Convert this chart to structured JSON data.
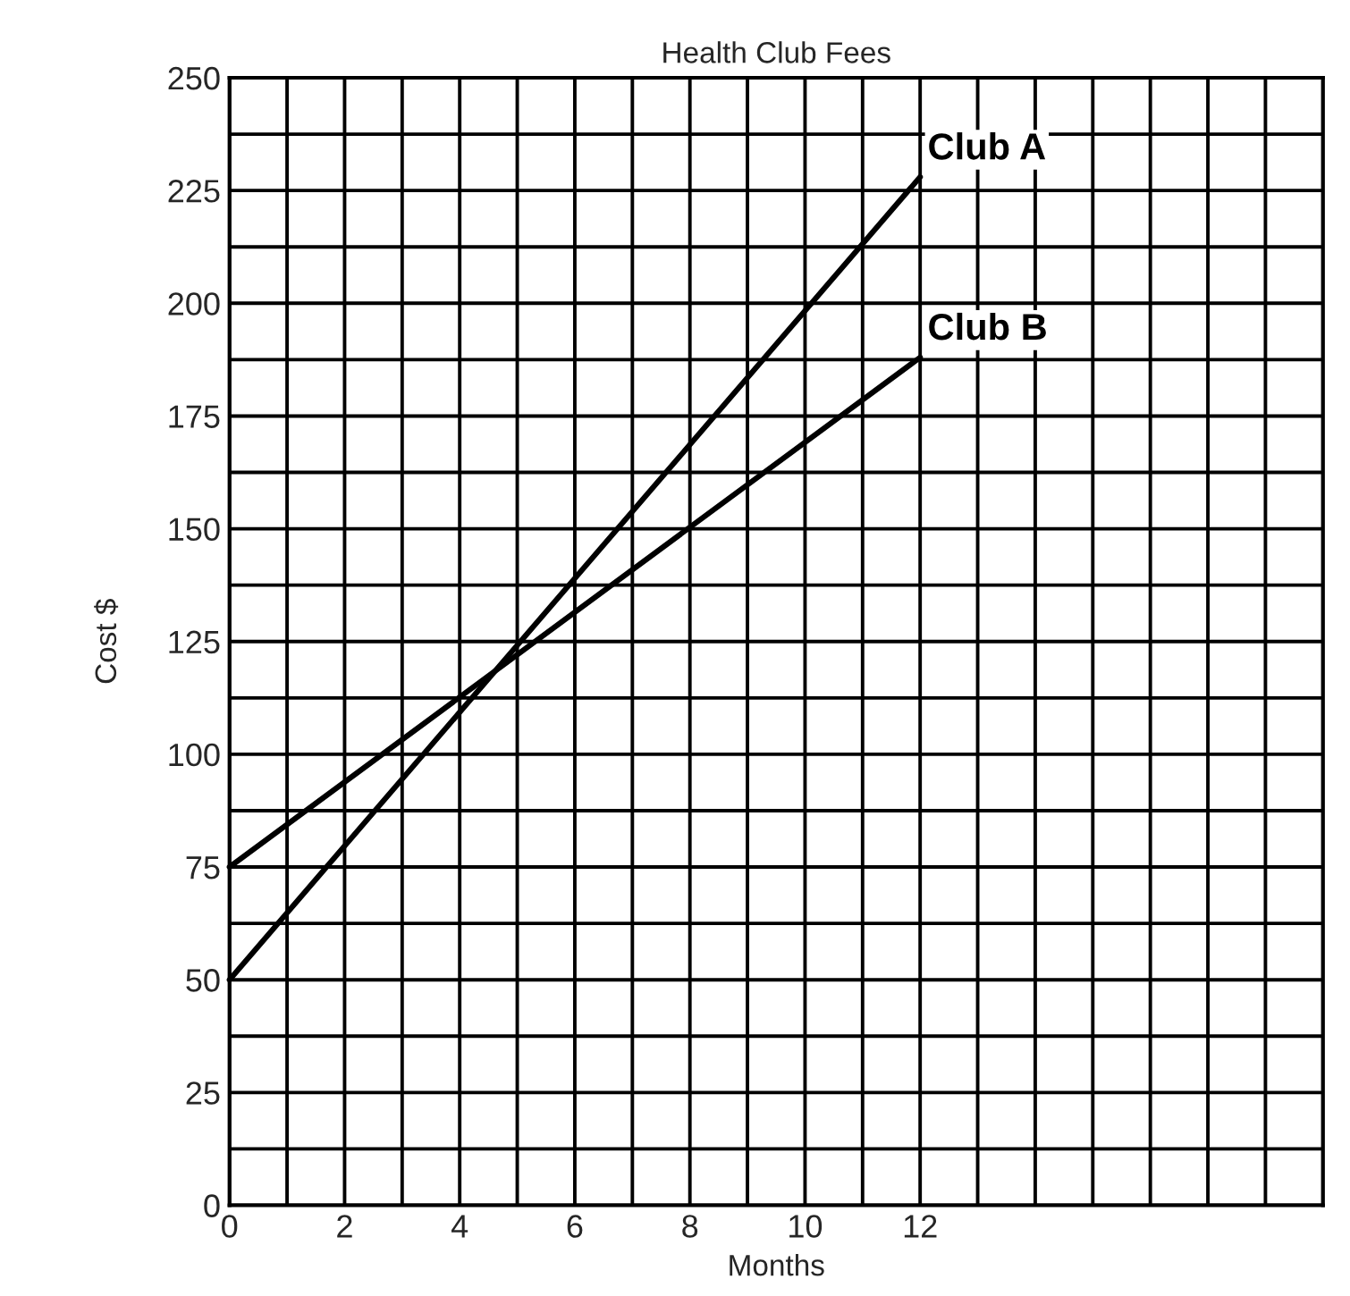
{
  "chart_data": {
    "type": "line",
    "title": "Health Club Fees",
    "xlabel": "Months",
    "ylabel": "Cost $",
    "series": [
      {
        "name": "Club A",
        "color": "#000000",
        "values": [
          50,
          228
        ]
      },
      {
        "name": "Club B",
        "color": "#000000",
        "values": [
          75,
          188
        ]
      }
    ],
    "x": [
      0,
      12
    ],
    "xlim": [
      0,
      19
    ],
    "ylim": [
      0,
      250
    ],
    "xticks": [
      0,
      {
        "value": 1,
        "label": null
      },
      2,
      {
        "value": 3,
        "label": null
      },
      4,
      {
        "value": 5,
        "label": null
      },
      6,
      {
        "value": 7,
        "label": null
      },
      8,
      {
        "value": 9,
        "label": null
      },
      10,
      {
        "value": 11,
        "label": null
      },
      12,
      {
        "value": 13,
        "label": null
      },
      {
        "value": 14,
        "label": null
      },
      {
        "value": 15,
        "label": null
      },
      {
        "value": 16,
        "label": null
      },
      {
        "value": 17,
        "label": null
      },
      {
        "value": 18,
        "label": null
      },
      {
        "value": 19,
        "label": null
      }
    ],
    "yticks": [
      0,
      {
        "value": 12.5,
        "label": null
      },
      25,
      {
        "value": 37.5,
        "label": null
      },
      50,
      {
        "value": 62.5,
        "label": null
      },
      75,
      {
        "value": 87.5,
        "label": null
      },
      100,
      {
        "value": 112.5,
        "label": null
      },
      125,
      {
        "value": 137.5,
        "label": null
      },
      150,
      {
        "value": 162.5,
        "label": null
      },
      175,
      {
        "value": 187.5,
        "label": null
      },
      200,
      {
        "value": 212.5,
        "label": null
      },
      225,
      {
        "value": 237.5,
        "label": null
      },
      250
    ],
    "grid": true,
    "legend": false,
    "marker": "none",
    "line_style": "solid"
  }
}
